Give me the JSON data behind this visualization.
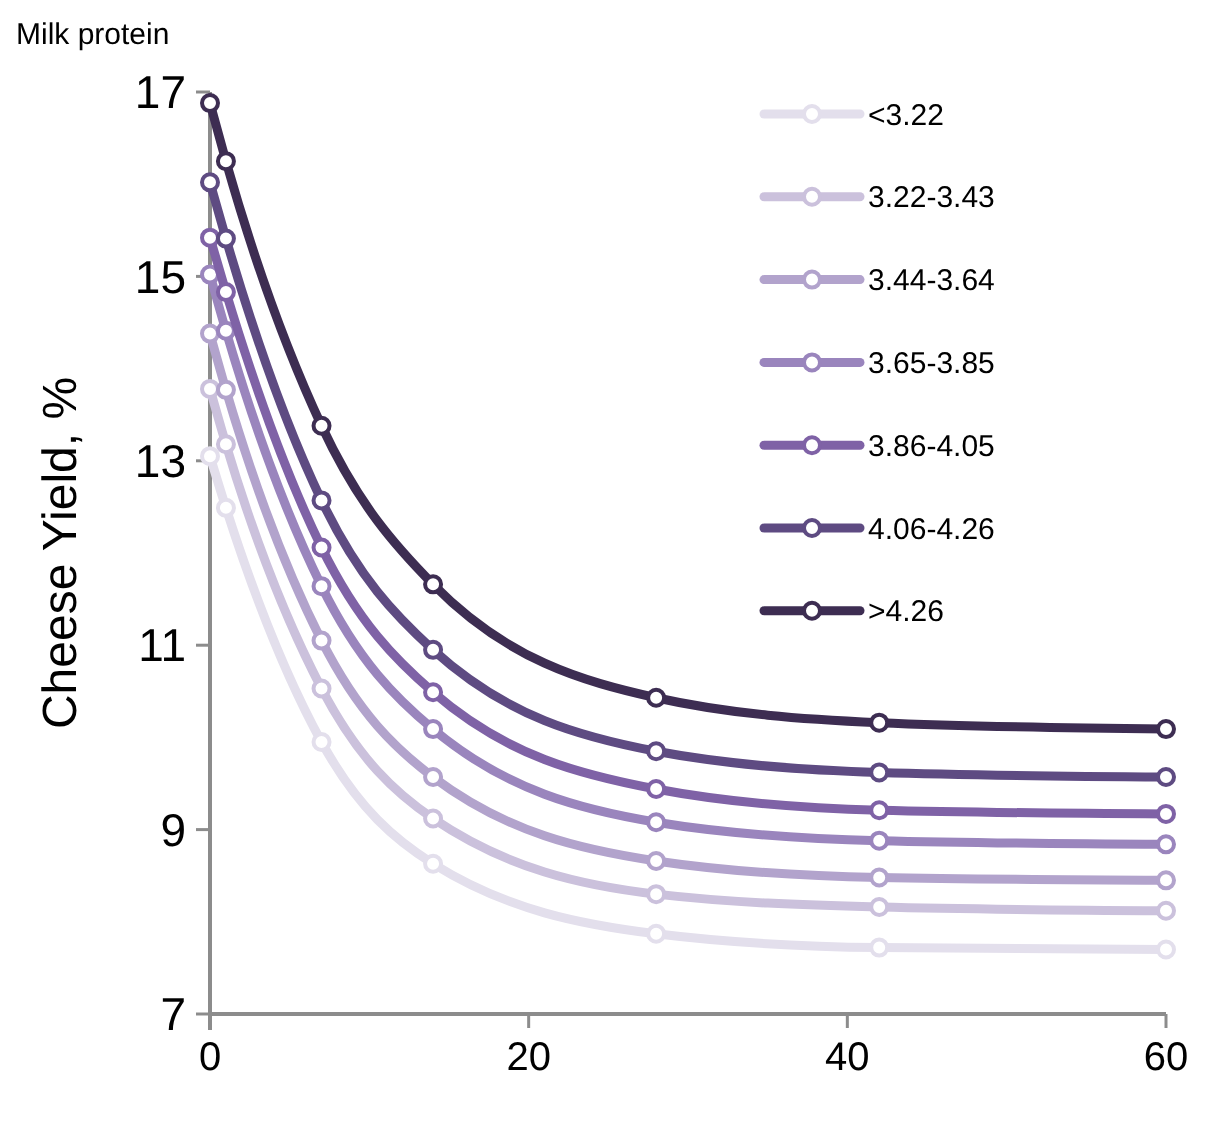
{
  "chart_data": {
    "type": "line",
    "legend_title": "Milk protein",
    "ylabel": "Cheese Yield, %",
    "x": [
      0,
      1,
      7,
      14,
      28,
      42,
      60
    ],
    "xlim": [
      0,
      60
    ],
    "xticks": [
      0,
      20,
      40,
      60
    ],
    "ylim": [
      7,
      17
    ],
    "yticks": [
      7,
      9,
      11,
      13,
      15,
      17
    ],
    "grid": false,
    "legend": "top right",
    "marker": "circle",
    "line_style": "solid",
    "series": [
      {
        "name": "<3.22",
        "color": "#e3dfec",
        "values": [
          13.05,
          12.49,
          9.95,
          8.63,
          7.87,
          7.72,
          7.7
        ]
      },
      {
        "name": "3.22-3.43",
        "color": "#cbc1dc",
        "values": [
          13.78,
          13.18,
          10.53,
          9.12,
          8.3,
          8.16,
          8.12
        ]
      },
      {
        "name": "3.44-3.64",
        "color": "#b2a3cc",
        "values": [
          14.38,
          13.77,
          11.05,
          9.57,
          8.66,
          8.48,
          8.45
        ]
      },
      {
        "name": "3.65-3.85",
        "color": "#9a85bd",
        "values": [
          15.02,
          14.41,
          11.64,
          10.09,
          9.08,
          8.88,
          8.84
        ]
      },
      {
        "name": "3.86-4.05",
        "color": "#7f62a6",
        "values": [
          15.42,
          14.83,
          12.06,
          10.49,
          9.44,
          9.21,
          9.17
        ]
      },
      {
        "name": "4.06-4.26",
        "color": "#5e4b82",
        "values": [
          16.02,
          15.41,
          12.57,
          10.95,
          9.85,
          9.62,
          9.57
        ]
      },
      {
        "name": ">4.26",
        "color": "#3d2d52",
        "values": [
          16.88,
          16.25,
          13.38,
          11.66,
          10.43,
          10.16,
          10.09
        ]
      }
    ]
  }
}
